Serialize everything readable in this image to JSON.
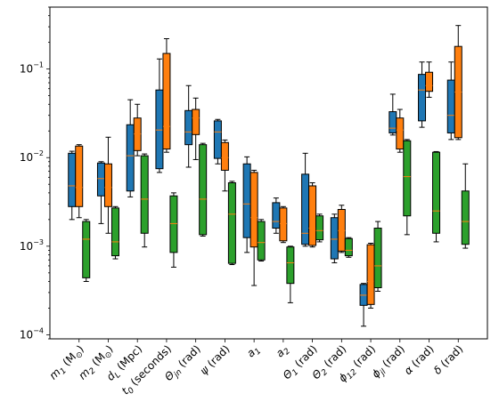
{
  "chart_data": {
    "type": "boxplot",
    "yscale": "log",
    "ylim": [
      9e-05,
      0.5
    ],
    "yticks": [
      {
        "value": 0.0001,
        "base": "10",
        "exp": "−4"
      },
      {
        "value": 0.001,
        "base": "10",
        "exp": "−3"
      },
      {
        "value": 0.01,
        "base": "10",
        "exp": "−2"
      },
      {
        "value": 0.1,
        "base": "10",
        "exp": "−1"
      }
    ],
    "categories": [
      {
        "main": "m",
        "sub": "1",
        "suffix": " (M",
        "sub2": "⊙",
        "end": ")"
      },
      {
        "main": "m",
        "sub": "2",
        "suffix": " (M",
        "sub2": "⊙",
        "end": ")"
      },
      {
        "main": "d",
        "sub": "L",
        "suffix": " (Mpc)"
      },
      {
        "main": "t",
        "sub": "0",
        "suffix": " (seconds)"
      },
      {
        "main": "Θ",
        "sub": "jn",
        "suffix": " (rad)"
      },
      {
        "main": "ψ",
        "sub": "",
        "suffix": " (rad)"
      },
      {
        "main": "a",
        "sub": "1",
        "suffix": ""
      },
      {
        "main": "a",
        "sub": "2",
        "suffix": ""
      },
      {
        "main": "Θ",
        "sub": "1",
        "suffix": " (rad)"
      },
      {
        "main": "Θ",
        "sub": "2",
        "suffix": " (rad)"
      },
      {
        "main": "ϕ",
        "sub": "12",
        "suffix": " (rad)"
      },
      {
        "main": "ϕ",
        "sub": "jl",
        "suffix": " (rad)"
      },
      {
        "main": "α",
        "sub": "",
        "suffix": " (rad)"
      },
      {
        "main": "δ",
        "sub": "",
        "suffix": " (rad)"
      }
    ],
    "colors": {
      "series_1": "#1f77b4",
      "series_2": "#ff7f0e",
      "series_3": "#2ca02c",
      "median": "#ff7f0e"
    },
    "series": [
      {
        "color": "#1f77b4",
        "boxes": [
          {
            "whislo": 0.002,
            "q1": 0.0028,
            "med": 0.0048,
            "q3": 0.0112,
            "whishi": 0.0118
          },
          {
            "whislo": 0.0018,
            "q1": 0.0037,
            "med": 0.0058,
            "q3": 0.0087,
            "whishi": 0.009
          },
          {
            "whislo": 0.0036,
            "q1": 0.0042,
            "med": 0.0105,
            "q3": 0.0235,
            "whishi": 0.045
          },
          {
            "whislo": 0.0068,
            "q1": 0.0075,
            "med": 0.0205,
            "q3": 0.058,
            "whishi": 0.13
          },
          {
            "whislo": 0.0078,
            "q1": 0.014,
            "med": 0.0195,
            "q3": 0.034,
            "whishi": 0.065
          },
          {
            "whislo": 0.0085,
            "q1": 0.0098,
            "med": 0.0195,
            "q3": 0.026,
            "whishi": 0.027
          },
          {
            "whislo": 0.00085,
            "q1": 0.00125,
            "med": 0.003,
            "q3": 0.0085,
            "whishi": 0.0102
          },
          {
            "whislo": 0.0014,
            "q1": 0.0016,
            "med": 0.0019,
            "q3": 0.0031,
            "whishi": 0.0035
          },
          {
            "whislo": 0.001,
            "q1": 0.00105,
            "med": 0.0014,
            "q3": 0.0065,
            "whishi": 0.0112
          },
          {
            "whislo": 0.00065,
            "q1": 0.00072,
            "med": 0.0012,
            "q3": 0.0021,
            "whishi": 0.0023
          },
          {
            "whislo": 0.000125,
            "q1": 0.000215,
            "med": 0.00028,
            "q3": 0.00037,
            "whishi": 0.00038
          },
          {
            "whislo": 0.018,
            "q1": 0.019,
            "med": 0.0215,
            "q3": 0.033,
            "whishi": 0.052
          },
          {
            "whislo": 0.022,
            "q1": 0.026,
            "med": 0.058,
            "q3": 0.087,
            "whishi": 0.12
          },
          {
            "whislo": 0.016,
            "q1": 0.019,
            "med": 0.03,
            "q3": 0.075,
            "whishi": 0.12
          }
        ]
      },
      {
        "color": "#ff7f0e",
        "boxes": [
          {
            "whislo": 0.0021,
            "q1": 0.0028,
            "med": 0.0046,
            "q3": 0.0135,
            "whishi": 0.014
          },
          {
            "whislo": 0.0014,
            "q1": 0.0028,
            "med": 0.0046,
            "q3": 0.0085,
            "whishi": 0.017
          },
          {
            "whislo": 0.0105,
            "q1": 0.012,
            "med": 0.0185,
            "q3": 0.028,
            "whishi": 0.04
          },
          {
            "whislo": 0.0115,
            "q1": 0.0125,
            "med": 0.0225,
            "q3": 0.15,
            "whishi": 0.22
          },
          {
            "whislo": 0.0095,
            "q1": 0.0182,
            "med": 0.028,
            "q3": 0.035,
            "whishi": 0.047
          },
          {
            "whislo": 0.0042,
            "q1": 0.0072,
            "med": 0.01,
            "q3": 0.0148,
            "whishi": 0.0158
          },
          {
            "whislo": 0.00036,
            "q1": 0.00098,
            "med": 0.0021,
            "q3": 0.0068,
            "whishi": 0.0072
          },
          {
            "whislo": 0.0011,
            "q1": 0.00115,
            "med": 0.0018,
            "q3": 0.0027,
            "whishi": 0.0028
          },
          {
            "whislo": 0.00098,
            "q1": 0.00102,
            "med": 0.0016,
            "q3": 0.0048,
            "whishi": 0.0052
          },
          {
            "whislo": 0.00085,
            "q1": 0.00088,
            "med": 0.0015,
            "q3": 0.0026,
            "whishi": 0.0029
          },
          {
            "whislo": 0.0002,
            "q1": 0.00022,
            "med": 0.0004,
            "q3": 0.00104,
            "whishi": 0.00108
          },
          {
            "whislo": 0.0115,
            "q1": 0.0125,
            "med": 0.0205,
            "q3": 0.028,
            "whishi": 0.035
          },
          {
            "whislo": 0.048,
            "q1": 0.056,
            "med": 0.065,
            "q3": 0.092,
            "whishi": 0.12
          },
          {
            "whislo": 0.016,
            "q1": 0.0168,
            "med": 0.055,
            "q3": 0.18,
            "whishi": 0.31
          }
        ]
      },
      {
        "color": "#2ca02c",
        "boxes": [
          {
            "whislo": 0.0004,
            "q1": 0.00044,
            "med": 0.0012,
            "q3": 0.0019,
            "whishi": 0.002
          },
          {
            "whislo": 0.00072,
            "q1": 0.00078,
            "med": 0.00112,
            "q3": 0.0027,
            "whishi": 0.0028
          },
          {
            "whislo": 0.00098,
            "q1": 0.0014,
            "med": 0.0034,
            "q3": 0.0105,
            "whishi": 0.011
          },
          {
            "whislo": 0.00058,
            "q1": 0.00085,
            "med": 0.0018,
            "q3": 0.0037,
            "whishi": 0.004
          },
          {
            "whislo": 0.0013,
            "q1": 0.00135,
            "med": 0.0034,
            "q3": 0.014,
            "whishi": 0.0145
          },
          {
            "whislo": 0.00062,
            "q1": 0.00064,
            "med": 0.0023,
            "q3": 0.0052,
            "whishi": 0.0054
          },
          {
            "whislo": 0.00068,
            "q1": 0.0007,
            "med": 0.0011,
            "q3": 0.0019,
            "whishi": 0.002
          },
          {
            "whislo": 0.00023,
            "q1": 0.00038,
            "med": 0.00065,
            "q3": 0.00098,
            "whishi": 0.001
          },
          {
            "whislo": 0.00112,
            "q1": 0.00118,
            "med": 0.0015,
            "q3": 0.0022,
            "whishi": 0.0023
          },
          {
            "whislo": 0.00075,
            "q1": 0.00078,
            "med": 0.0009,
            "q3": 0.00122,
            "whishi": 0.00125
          },
          {
            "whislo": 0.00031,
            "q1": 0.00034,
            "med": 0.0006,
            "q3": 0.0016,
            "whishi": 0.0019
          },
          {
            "whislo": 0.00135,
            "q1": 0.0022,
            "med": 0.0061,
            "q3": 0.0155,
            "whishi": 0.016
          },
          {
            "whislo": 0.00112,
            "q1": 0.0014,
            "med": 0.0025,
            "q3": 0.0115,
            "whishi": 0.0117
          },
          {
            "whislo": 0.00095,
            "q1": 0.00105,
            "med": 0.0019,
            "q3": 0.0042,
            "whishi": 0.0085
          }
        ]
      }
    ]
  }
}
